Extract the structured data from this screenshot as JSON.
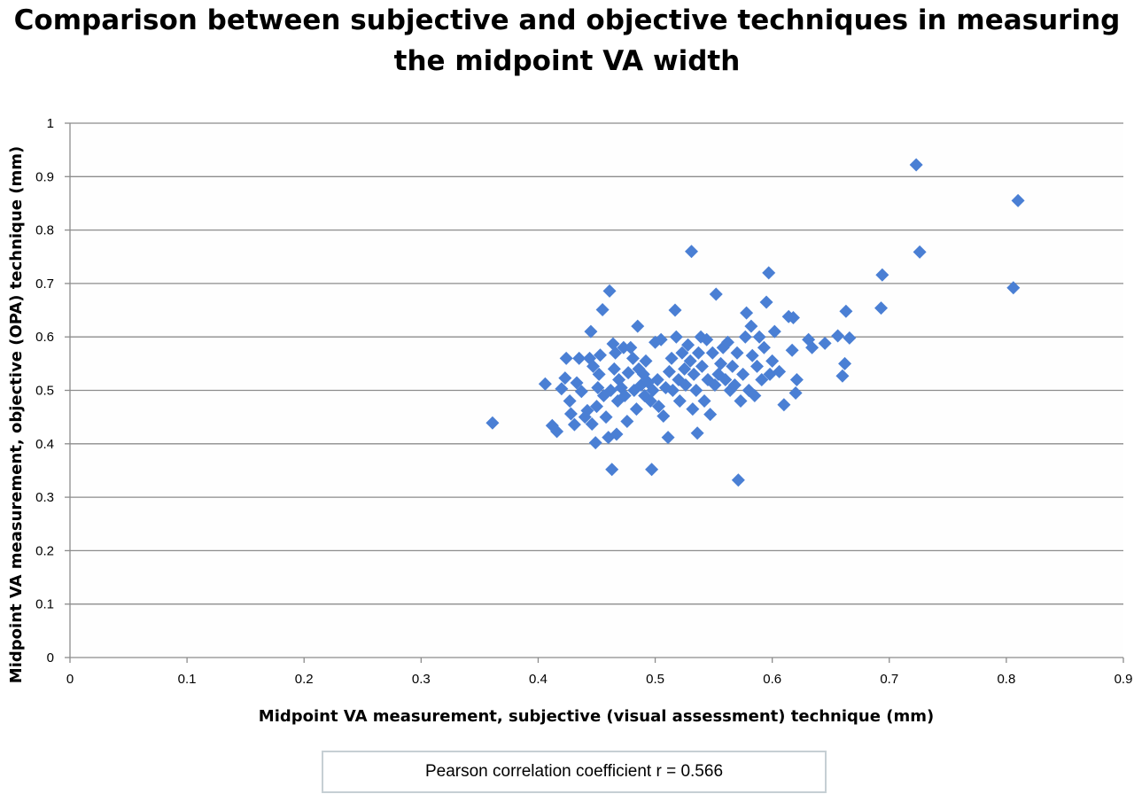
{
  "chart_data": {
    "type": "scatter",
    "title": "Comparison between subjective and objective techniques in measuring the midpoint VA width",
    "xlabel": "Midpoint VA measurement, subjective (visual assessment) technique (mm)",
    "ylabel": "Midpoint VA measurement, objective (OPA) technique (mm)",
    "xlim": [
      0,
      0.9
    ],
    "ylim": [
      0,
      1
    ],
    "x_ticks": [
      "0",
      "0.1",
      "0.2",
      "0.3",
      "0.4",
      "0.5",
      "0.6",
      "0.7",
      "0.8",
      "0.9"
    ],
    "y_ticks": [
      "0",
      "0.1",
      "0.2",
      "0.3",
      "0.4",
      "0.5",
      "0.6",
      "0.7",
      "0.8",
      "0.9",
      "1"
    ],
    "grid": "horizontal",
    "annotation": "Pearson correlation coefficient r = 0.566",
    "marker_color": "#4a7fd4",
    "points": [
      [
        0.361,
        0.439
      ],
      [
        0.406,
        0.512
      ],
      [
        0.412,
        0.434
      ],
      [
        0.416,
        0.423
      ],
      [
        0.42,
        0.503
      ],
      [
        0.423,
        0.523
      ],
      [
        0.424,
        0.56
      ],
      [
        0.427,
        0.48
      ],
      [
        0.428,
        0.456
      ],
      [
        0.431,
        0.436
      ],
      [
        0.433,
        0.514
      ],
      [
        0.435,
        0.56
      ],
      [
        0.437,
        0.498
      ],
      [
        0.44,
        0.45
      ],
      [
        0.442,
        0.462
      ],
      [
        0.444,
        0.56
      ],
      [
        0.445,
        0.61
      ],
      [
        0.446,
        0.437
      ],
      [
        0.447,
        0.545
      ],
      [
        0.449,
        0.402
      ],
      [
        0.45,
        0.47
      ],
      [
        0.451,
        0.505
      ],
      [
        0.452,
        0.53
      ],
      [
        0.453,
        0.566
      ],
      [
        0.455,
        0.651
      ],
      [
        0.456,
        0.49
      ],
      [
        0.458,
        0.45
      ],
      [
        0.46,
        0.412
      ],
      [
        0.461,
        0.686
      ],
      [
        0.462,
        0.5
      ],
      [
        0.463,
        0.352
      ],
      [
        0.464,
        0.587
      ],
      [
        0.465,
        0.54
      ],
      [
        0.466,
        0.57
      ],
      [
        0.467,
        0.418
      ],
      [
        0.468,
        0.48
      ],
      [
        0.469,
        0.52
      ],
      [
        0.471,
        0.505
      ],
      [
        0.473,
        0.58
      ],
      [
        0.474,
        0.49
      ],
      [
        0.476,
        0.442
      ],
      [
        0.477,
        0.533
      ],
      [
        0.479,
        0.58
      ],
      [
        0.481,
        0.56
      ],
      [
        0.482,
        0.5
      ],
      [
        0.484,
        0.465
      ],
      [
        0.485,
        0.62
      ],
      [
        0.486,
        0.54
      ],
      [
        0.488,
        0.51
      ],
      [
        0.49,
        0.53
      ],
      [
        0.491,
        0.49
      ],
      [
        0.492,
        0.555
      ],
      [
        0.494,
        0.515
      ],
      [
        0.496,
        0.48
      ],
      [
        0.497,
        0.352
      ],
      [
        0.498,
        0.5
      ],
      [
        0.5,
        0.59
      ],
      [
        0.502,
        0.52
      ],
      [
        0.503,
        0.47
      ],
      [
        0.505,
        0.595
      ],
      [
        0.507,
        0.452
      ],
      [
        0.509,
        0.505
      ],
      [
        0.511,
        0.412
      ],
      [
        0.512,
        0.535
      ],
      [
        0.514,
        0.56
      ],
      [
        0.515,
        0.5
      ],
      [
        0.517,
        0.65
      ],
      [
        0.518,
        0.6
      ],
      [
        0.52,
        0.52
      ],
      [
        0.521,
        0.48
      ],
      [
        0.523,
        0.57
      ],
      [
        0.525,
        0.54
      ],
      [
        0.526,
        0.51
      ],
      [
        0.528,
        0.585
      ],
      [
        0.53,
        0.555
      ],
      [
        0.531,
        0.76
      ],
      [
        0.532,
        0.465
      ],
      [
        0.533,
        0.53
      ],
      [
        0.535,
        0.5
      ],
      [
        0.536,
        0.42
      ],
      [
        0.537,
        0.57
      ],
      [
        0.539,
        0.6
      ],
      [
        0.54,
        0.545
      ],
      [
        0.542,
        0.48
      ],
      [
        0.544,
        0.595
      ],
      [
        0.545,
        0.52
      ],
      [
        0.547,
        0.455
      ],
      [
        0.549,
        0.57
      ],
      [
        0.551,
        0.51
      ],
      [
        0.552,
        0.68
      ],
      [
        0.554,
        0.53
      ],
      [
        0.556,
        0.55
      ],
      [
        0.558,
        0.58
      ],
      [
        0.56,
        0.52
      ],
      [
        0.562,
        0.59
      ],
      [
        0.564,
        0.5
      ],
      [
        0.566,
        0.545
      ],
      [
        0.568,
        0.51
      ],
      [
        0.57,
        0.57
      ],
      [
        0.571,
        0.332
      ],
      [
        0.573,
        0.48
      ],
      [
        0.575,
        0.53
      ],
      [
        0.577,
        0.6
      ],
      [
        0.578,
        0.645
      ],
      [
        0.58,
        0.5
      ],
      [
        0.582,
        0.62
      ],
      [
        0.583,
        0.565
      ],
      [
        0.585,
        0.49
      ],
      [
        0.587,
        0.545
      ],
      [
        0.589,
        0.6
      ],
      [
        0.591,
        0.52
      ],
      [
        0.593,
        0.58
      ],
      [
        0.595,
        0.665
      ],
      [
        0.597,
        0.72
      ],
      [
        0.598,
        0.53
      ],
      [
        0.6,
        0.555
      ],
      [
        0.602,
        0.61
      ],
      [
        0.606,
        0.535
      ],
      [
        0.61,
        0.473
      ],
      [
        0.614,
        0.638
      ],
      [
        0.617,
        0.575
      ],
      [
        0.618,
        0.636
      ],
      [
        0.62,
        0.495
      ],
      [
        0.621,
        0.52
      ],
      [
        0.631,
        0.595
      ],
      [
        0.634,
        0.58
      ],
      [
        0.645,
        0.588
      ],
      [
        0.656,
        0.602
      ],
      [
        0.66,
        0.527
      ],
      [
        0.662,
        0.55
      ],
      [
        0.663,
        0.648
      ],
      [
        0.666,
        0.598
      ],
      [
        0.693,
        0.654
      ],
      [
        0.694,
        0.716
      ],
      [
        0.723,
        0.922
      ],
      [
        0.726,
        0.759
      ],
      [
        0.806,
        0.692
      ],
      [
        0.81,
        0.855
      ]
    ]
  }
}
